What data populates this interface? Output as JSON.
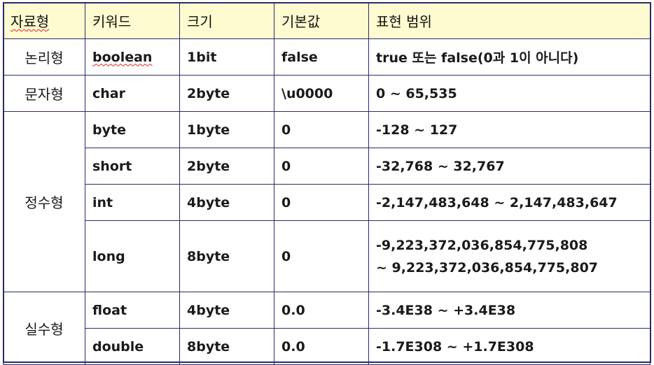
{
  "headers": {
    "type_group": "자료형",
    "keyword": "키워드",
    "size": "크기",
    "default": "기본값",
    "range": "표현 범위"
  },
  "groups": {
    "logical": "논리형",
    "char": "문자형",
    "integer": "정수형",
    "real": "실수형"
  },
  "rows": [
    {
      "keyword": "boolean",
      "size": "1bit",
      "default": "false",
      "range": "true 또는 false(0과 1이 아니다)"
    },
    {
      "keyword": "char",
      "size": "2byte",
      "default": "\\u0000",
      "range": "0 ~ 65,535"
    },
    {
      "keyword": "byte",
      "size": "1byte",
      "default": "0",
      "range": "-128 ~ 127"
    },
    {
      "keyword": "short",
      "size": "2byte",
      "default": "0",
      "range": "-32,768 ~ 32,767"
    },
    {
      "keyword": "int",
      "size": "4byte",
      "default": "0",
      "range": "-2,147,483,648 ~ 2,147,483,647"
    },
    {
      "keyword": "long",
      "size": "8byte",
      "default": "0",
      "range_line1": "-9,223,372,036,854,775,808",
      "range_line2": "~ 9,223,372,036,854,775,807"
    },
    {
      "keyword": "float",
      "size": "4byte",
      "default": "0.0",
      "range": "-3.4E38 ~ +3.4E38"
    },
    {
      "keyword": "double",
      "size": "8byte",
      "default": "0.0",
      "range": "-1.7E308 ~ +1.7E308"
    }
  ],
  "colors": {
    "header_bg": "#fefbd0",
    "border": "#2b2b6b",
    "spellcheck_underline": "#dd2222"
  }
}
